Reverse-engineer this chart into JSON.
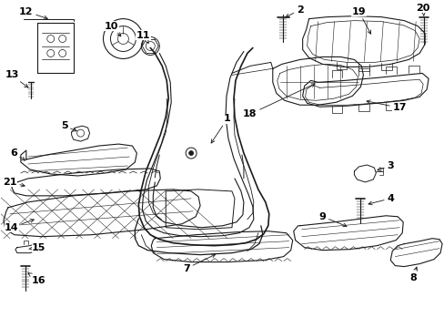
{
  "bg_color": "#ffffff",
  "line_color": "#1a1a1a",
  "text_color": "#000000",
  "fig_width": 4.89,
  "fig_height": 3.6,
  "dpi": 100
}
